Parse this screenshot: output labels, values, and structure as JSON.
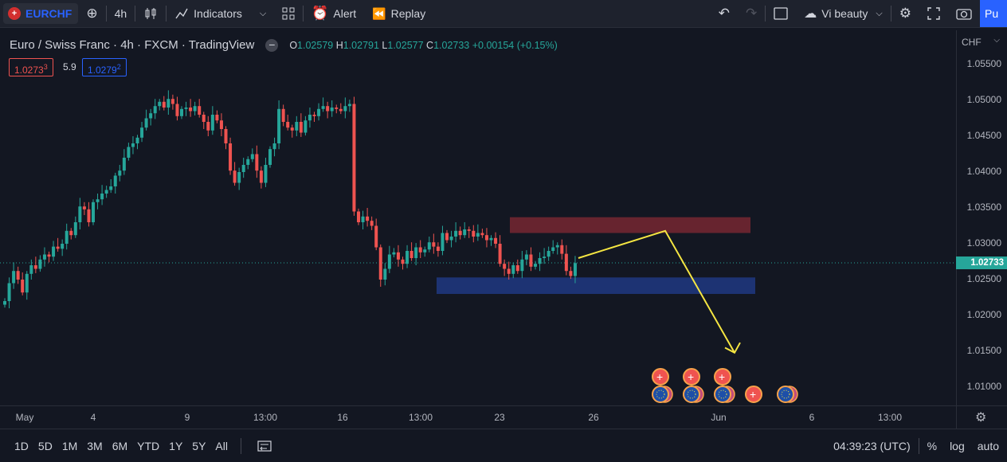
{
  "toolbar": {
    "symbol": "EURCHF",
    "interval": "4h",
    "indicators_label": "Indicators",
    "alert_label": "Alert",
    "replay_label": "Replay",
    "layout_name": "Vi beauty",
    "publish_label": "Pu"
  },
  "legend": {
    "title": "Euro / Swiss Franc · 4h · FXCM · TradingView",
    "o_label": "O",
    "o": "1.02579",
    "h_label": "H",
    "h": "1.02791",
    "l_label": "L",
    "l": "1.02577",
    "c_label": "C",
    "c": "1.02733",
    "change": "+0.00154 (+0.15%)",
    "sell_price": "1.0273",
    "sell_sup": "3",
    "spread": "5.9",
    "buy_price": "1.0279",
    "buy_sup": "2"
  },
  "price_axis": {
    "currency": "CHF",
    "ticks": [
      "1.05500",
      "1.05000",
      "1.04500",
      "1.04000",
      "1.03500",
      "1.03000",
      "1.02500",
      "1.02000",
      "1.01500",
      "1.01000"
    ],
    "current": "1.02733"
  },
  "time_axis": {
    "ticks": [
      "May",
      "4",
      "9",
      "13:00",
      "16",
      "13:00",
      "23",
      "26",
      "Jun",
      "6",
      "13:00"
    ]
  },
  "bottombar": {
    "ranges": [
      "1D",
      "5D",
      "1M",
      "3M",
      "6M",
      "YTD",
      "1Y",
      "5Y",
      "All"
    ],
    "clock": "04:39:23 (UTC)",
    "percent": "%",
    "log": "log",
    "auto": "auto"
  },
  "colors": {
    "up": "#26a69a",
    "down": "#ef5350",
    "resistance_zone": "#6b2530",
    "support_zone": "#1d3578",
    "arrow": "#f5e642"
  }
}
